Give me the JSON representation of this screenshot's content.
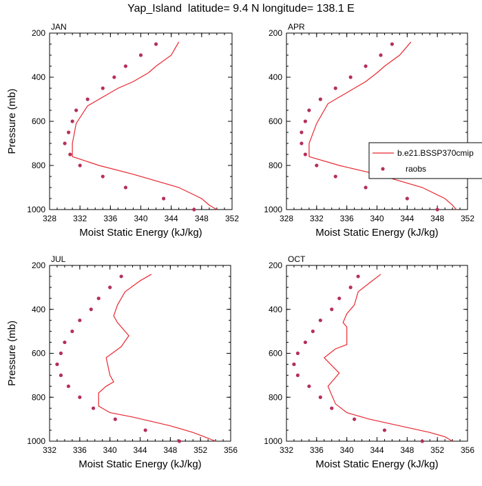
{
  "title": "Yap_Island  latitude= 9.4 N longitude= 138.1 E",
  "colors": {
    "model_line": "#e8262e",
    "raobs_marker": "#b5305a",
    "axes": "#000000"
  },
  "legend": {
    "placement": "right-middle",
    "items": [
      {
        "label": "b.e21.BSSP370cmip",
        "type": "line"
      },
      {
        "label": "raobs",
        "type": "marker"
      }
    ]
  },
  "chart_data": [
    {
      "type": "line+scatter",
      "panel": "JAN",
      "xlabel": "Moist Static Energy (kJ/kg)",
      "ylabel": "Pressure (mb)",
      "xlim": [
        328,
        352
      ],
      "ylim": [
        1000,
        200
      ],
      "y_reversed": true,
      "xticks": [
        "328",
        "332",
        "336",
        "340",
        "344",
        "348",
        "352"
      ],
      "yticks": [
        "200",
        "400",
        "600",
        "800",
        "1000"
      ],
      "series": [
        {
          "name": "b.e21.BSSP370cmip",
          "style": "line",
          "x": [
            345.0,
            344.0,
            342.0,
            341.0,
            339.0,
            337.0,
            333.0,
            331.5,
            331.0,
            331.0,
            334.5,
            339.0,
            345.0,
            348.0,
            349.0,
            350.0
          ],
          "y": [
            240,
            300,
            350,
            380,
            420,
            450,
            530,
            610,
            700,
            760,
            800,
            840,
            900,
            950,
            980,
            1000
          ]
        },
        {
          "name": "raobs",
          "style": "markers",
          "x": [
            342.0,
            340.0,
            338.0,
            336.5,
            335.0,
            333.0,
            331.5,
            331.0,
            330.5,
            330.0,
            330.7,
            332.0,
            335.0,
            338.0,
            343.0,
            347.0
          ],
          "y": [
            250,
            300,
            350,
            400,
            450,
            500,
            550,
            600,
            650,
            700,
            750,
            800,
            850,
            900,
            950,
            1000
          ]
        }
      ]
    },
    {
      "type": "line+scatter",
      "panel": "APR",
      "xlabel": "Moist Static Energy (kJ/kg)",
      "ylabel": "",
      "xlim": [
        328,
        352
      ],
      "ylim": [
        1000,
        200
      ],
      "y_reversed": true,
      "xticks": [
        "328",
        "332",
        "336",
        "340",
        "344",
        "348",
        "352"
      ],
      "yticks": [
        "200",
        "400",
        "600",
        "800",
        "1000"
      ],
      "series": [
        {
          "name": "b.e21.BSSP370cmip",
          "style": "line",
          "x": [
            344.5,
            343.0,
            341.0,
            340.0,
            338.5,
            337.0,
            333.5,
            332.0,
            331.0,
            331.0,
            335.0,
            340.0,
            346.0,
            349.0,
            350.0,
            350.5
          ],
          "y": [
            240,
            300,
            350,
            380,
            420,
            450,
            520,
            610,
            700,
            760,
            800,
            840,
            900,
            950,
            980,
            1000
          ]
        },
        {
          "name": "raobs",
          "style": "markers",
          "x": [
            342.0,
            340.5,
            338.5,
            336.5,
            334.5,
            332.5,
            331.0,
            330.5,
            330.0,
            330.0,
            330.5,
            332.0,
            334.5,
            338.5,
            344.0,
            348.0
          ],
          "y": [
            250,
            300,
            350,
            400,
            450,
            500,
            550,
            600,
            650,
            700,
            750,
            800,
            850,
            900,
            950,
            1000
          ]
        }
      ]
    },
    {
      "type": "line+scatter",
      "panel": "JUL",
      "xlabel": "Moist Static Energy (kJ/kg)",
      "ylabel": "Pressure (mb)",
      "xlim": [
        332,
        356
      ],
      "ylim": [
        1000,
        200
      ],
      "y_reversed": true,
      "xticks": [
        "332",
        "336",
        "340",
        "344",
        "348",
        "352",
        "356"
      ],
      "yticks": [
        "200",
        "400",
        "600",
        "800",
        "1000"
      ],
      "series": [
        {
          "name": "b.e21.BSSP370cmip",
          "style": "line",
          "x": [
            345.5,
            344.0,
            342.0,
            341.0,
            340.5,
            341.0,
            342.5,
            341.5,
            339.5,
            340.0,
            340.5,
            339.5,
            338.5,
            338.5,
            340.0,
            343.0,
            348.0,
            351.0,
            352.5,
            354.0
          ],
          "y": [
            240,
            270,
            320,
            380,
            430,
            460,
            520,
            570,
            620,
            700,
            730,
            750,
            780,
            840,
            870,
            890,
            930,
            960,
            980,
            1000
          ]
        },
        {
          "name": "raobs",
          "style": "markers",
          "x": [
            341.5,
            340.0,
            338.5,
            337.5,
            336.0,
            335.0,
            334.0,
            333.5,
            333.0,
            333.0,
            333.5,
            334.5,
            336.0,
            337.8,
            340.7,
            344.7,
            349.2
          ],
          "y": [
            250,
            300,
            350,
            400,
            450,
            500,
            550,
            600,
            650,
            650,
            700,
            750,
            800,
            850,
            900,
            950,
            1000
          ]
        }
      ]
    },
    {
      "type": "line+scatter",
      "panel": "OCT",
      "xlabel": "Moist Static Energy (kJ/kg)",
      "ylabel": "",
      "xlim": [
        332,
        356
      ],
      "ylim": [
        1000,
        200
      ],
      "y_reversed": true,
      "xticks": [
        "332",
        "336",
        "340",
        "344",
        "348",
        "352",
        "356"
      ],
      "yticks": [
        "200",
        "400",
        "600",
        "800",
        "1000"
      ],
      "series": [
        {
          "name": "b.e21.BSSP370cmip",
          "style": "line",
          "x": [
            344.5,
            343.0,
            341.5,
            341.0,
            340.0,
            339.5,
            340.0,
            340.0,
            338.5,
            337.0,
            339.0,
            337.5,
            338.5,
            340.0,
            343.0,
            347.0,
            351.0,
            353.0,
            354.0
          ],
          "y": [
            240,
            280,
            320,
            380,
            420,
            460,
            480,
            560,
            580,
            620,
            690,
            750,
            830,
            870,
            900,
            930,
            960,
            980,
            1000
          ]
        },
        {
          "name": "raobs",
          "style": "markers",
          "x": [
            341.5,
            340.5,
            339.0,
            338.0,
            336.5,
            335.5,
            334.5,
            333.5,
            333.0,
            333.0,
            333.5,
            335.0,
            336.5,
            338.0,
            341.0,
            345.0,
            350.0
          ],
          "y": [
            250,
            300,
            350,
            400,
            450,
            500,
            550,
            600,
            650,
            650,
            700,
            750,
            800,
            850,
            900,
            950,
            1000
          ]
        }
      ]
    }
  ]
}
